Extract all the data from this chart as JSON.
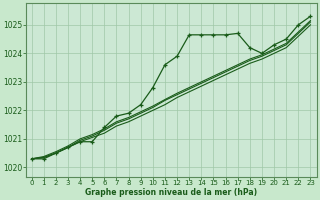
{
  "bg_color": "#c8e8cc",
  "plot_bg_color": "#cce8d4",
  "grid_color": "#a0c8a8",
  "line_color": "#1a5c1a",
  "title": "Graphe pression niveau de la mer (hPa)",
  "hours": [
    0,
    1,
    2,
    3,
    4,
    5,
    6,
    7,
    8,
    9,
    10,
    11,
    12,
    13,
    14,
    15,
    16,
    17,
    18,
    19,
    20,
    21,
    22,
    23
  ],
  "main_data": [
    1020.3,
    1020.3,
    1020.5,
    1020.7,
    1020.9,
    1020.9,
    1021.4,
    1021.8,
    1021.9,
    1022.2,
    1022.8,
    1023.6,
    1023.9,
    1024.65,
    1024.65,
    1024.65,
    1024.65,
    1024.7,
    1024.2,
    1024.0,
    1024.3,
    1024.5,
    1025.0,
    1025.3
  ],
  "line2_data": [
    1020.3,
    1020.35,
    1020.5,
    1020.7,
    1020.9,
    1021.05,
    1021.2,
    1021.45,
    1021.6,
    1021.8,
    1022.0,
    1022.2,
    1022.45,
    1022.65,
    1022.85,
    1023.05,
    1023.25,
    1023.45,
    1023.65,
    1023.8,
    1024.0,
    1024.2,
    1024.6,
    1025.0
  ],
  "line3_data": [
    1020.3,
    1020.35,
    1020.5,
    1020.7,
    1020.95,
    1021.1,
    1021.3,
    1021.55,
    1021.7,
    1021.9,
    1022.1,
    1022.35,
    1022.55,
    1022.75,
    1022.95,
    1023.15,
    1023.35,
    1023.55,
    1023.75,
    1023.9,
    1024.1,
    1024.3,
    1024.7,
    1025.1
  ],
  "line4_data": [
    1020.3,
    1020.38,
    1020.55,
    1020.75,
    1021.0,
    1021.15,
    1021.35,
    1021.6,
    1021.75,
    1021.95,
    1022.15,
    1022.38,
    1022.6,
    1022.8,
    1023.0,
    1023.2,
    1023.4,
    1023.6,
    1023.8,
    1023.95,
    1024.15,
    1024.35,
    1024.75,
    1025.15
  ],
  "ylim": [
    1019.65,
    1025.75
  ],
  "yticks": [
    1020,
    1021,
    1022,
    1023,
    1024,
    1025
  ],
  "xticks": [
    0,
    1,
    2,
    3,
    4,
    5,
    6,
    7,
    8,
    9,
    10,
    11,
    12,
    13,
    14,
    15,
    16,
    17,
    18,
    19,
    20,
    21,
    22,
    23
  ]
}
